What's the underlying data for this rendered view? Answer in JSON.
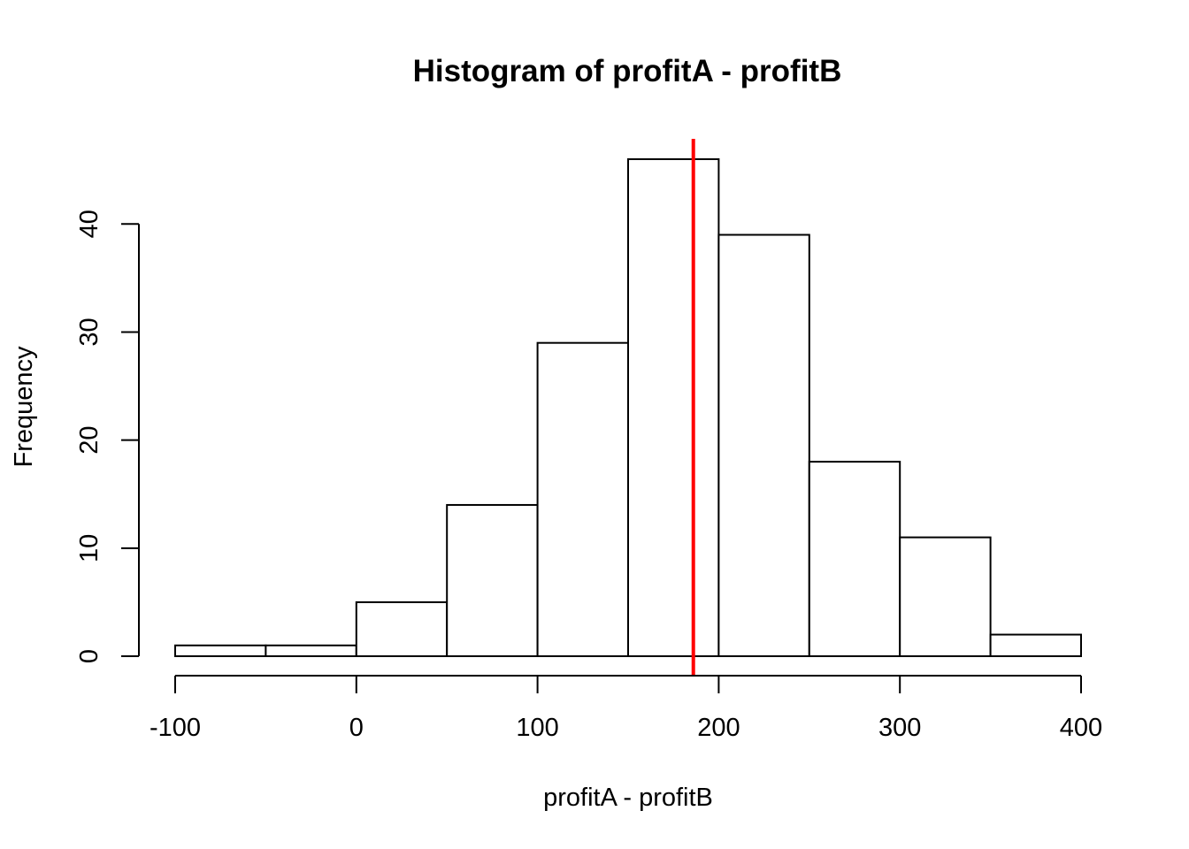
{
  "chart_data": {
    "type": "bar",
    "subtype": "histogram",
    "title": "Histogram of profitA - profitB",
    "xlabel": "profitA - profitB",
    "ylabel": "Frequency",
    "bin_edges": [
      -100,
      -50,
      0,
      50,
      100,
      150,
      200,
      250,
      300,
      350,
      400
    ],
    "values": [
      1,
      1,
      5,
      14,
      29,
      46,
      39,
      18,
      11,
      2
    ],
    "xlim": [
      -100,
      400
    ],
    "ylim": [
      0,
      46
    ],
    "x_ticks": [
      -100,
      0,
      100,
      200,
      300,
      400
    ],
    "x_tick_labels": [
      "-100",
      "0",
      "100",
      "200",
      "300",
      "400"
    ],
    "y_ticks": [
      0,
      10,
      20,
      30,
      40
    ],
    "y_tick_labels": [
      "0",
      "10",
      "20",
      "30",
      "40"
    ],
    "reference_line": {
      "x": 186,
      "color": "#ff0000"
    },
    "bar_fill": "#ffffff",
    "bar_stroke": "#000000"
  }
}
